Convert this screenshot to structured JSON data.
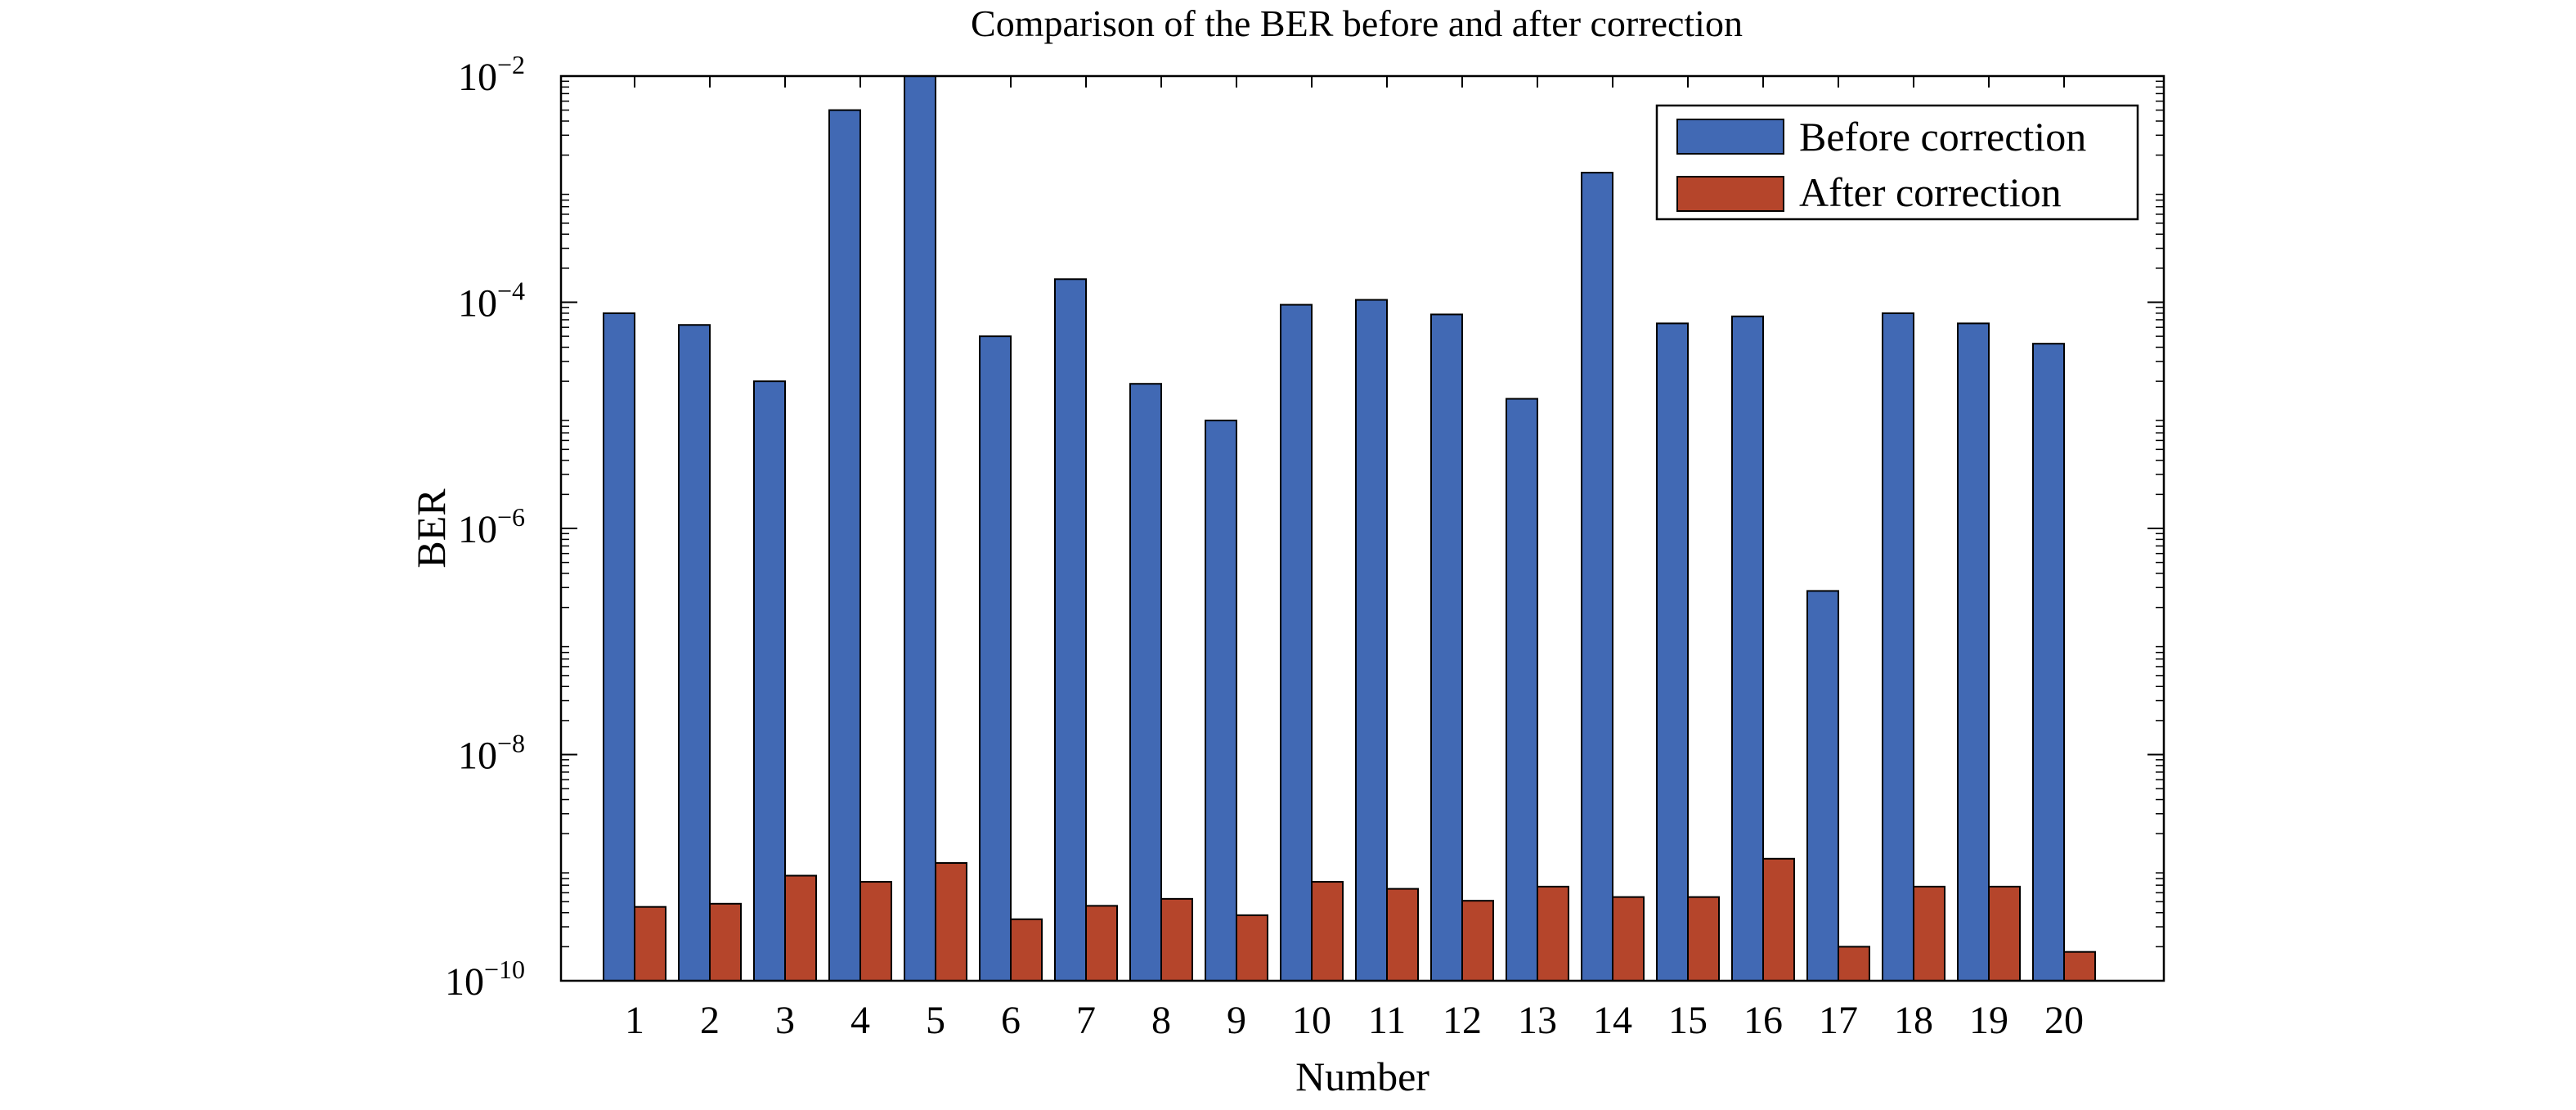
{
  "chart_data": {
    "type": "bar",
    "title": "Comparison of the BER before and after correction",
    "xlabel": "Number",
    "ylabel": "BER",
    "yscale": "log",
    "ylim": [
      1e-10,
      0.01
    ],
    "yticks": [
      {
        "base": "10",
        "exp": "−10"
      },
      {
        "base": "10",
        "exp": "−8"
      },
      {
        "base": "10",
        "exp": "−6"
      },
      {
        "base": "10",
        "exp": "−4"
      },
      {
        "base": "10",
        "exp": "−2"
      }
    ],
    "categories": [
      "1",
      "2",
      "3",
      "4",
      "5",
      "6",
      "7",
      "8",
      "9",
      "10",
      "11",
      "12",
      "13",
      "14",
      "15",
      "16",
      "17",
      "18",
      "19",
      "20"
    ],
    "series": [
      {
        "name": "Before correction",
        "color": "#4169b4",
        "values": [
          8e-05,
          6.3e-05,
          2e-05,
          0.005,
          0.01,
          5e-05,
          0.00016,
          1.9e-05,
          9e-06,
          9.5e-05,
          0.000105,
          7.8e-05,
          1.4e-05,
          0.0014,
          6.5e-05,
          7.5e-05,
          2.8e-07,
          8e-05,
          6.5e-05,
          4.3e-05
        ]
      },
      {
        "name": "After correction",
        "color": "#b5452b",
        "values": [
          4.5e-10,
          4.8e-10,
          8.5e-10,
          7.5e-10,
          1.1e-09,
          3.5e-10,
          4.6e-10,
          5.3e-10,
          3.8e-10,
          7.5e-10,
          6.5e-10,
          5.1e-10,
          6.8e-10,
          5.5e-10,
          5.5e-10,
          1.2e-09,
          2e-10,
          6.8e-10,
          6.8e-10,
          1.8e-10
        ]
      }
    ],
    "legend_position": "top-right",
    "grid": false
  }
}
